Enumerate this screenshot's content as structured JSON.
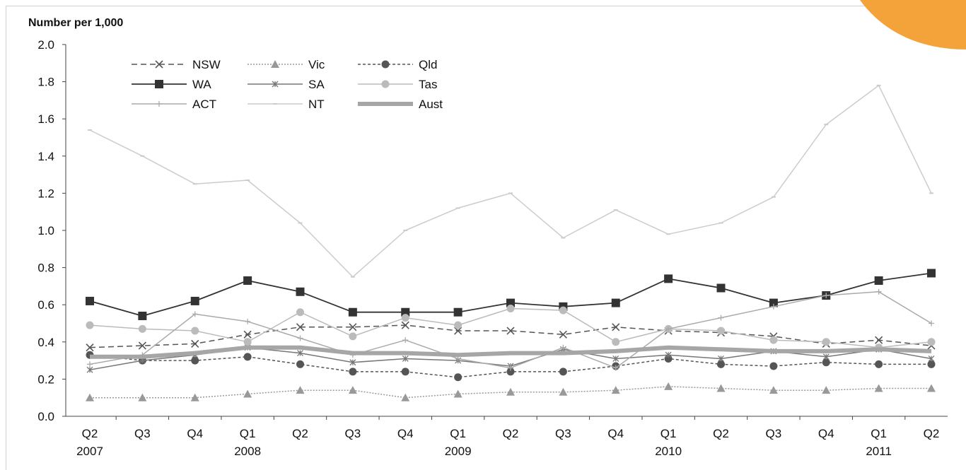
{
  "chart_data": {
    "type": "line",
    "ylabel": "Number per 1,000",
    "xlabel": "",
    "ylim": [
      0,
      2.0
    ],
    "y_ticks": [
      "0.0",
      "0.2",
      "0.4",
      "0.6",
      "0.8",
      "1.0",
      "1.2",
      "1.4",
      "1.6",
      "1.8",
      "2.0"
    ],
    "x_quarters": [
      "Q2",
      "Q3",
      "Q4",
      "Q1",
      "Q2",
      "Q3",
      "Q4",
      "Q1",
      "Q2",
      "Q3",
      "Q4",
      "Q1",
      "Q2",
      "Q3",
      "Q4",
      "Q1",
      "Q2"
    ],
    "x_years": [
      {
        "label": "2007",
        "index": 0
      },
      {
        "label": "2008",
        "index": 3
      },
      {
        "label": "2009",
        "index": 7
      },
      {
        "label": "2010",
        "index": 11
      },
      {
        "label": "2011",
        "index": 15
      }
    ],
    "grid": false,
    "legend_position": "top-left",
    "series": [
      {
        "name": "NSW",
        "color": "#555555",
        "dash": "8,5",
        "width": 1.5,
        "marker": "x",
        "values": [
          0.37,
          0.38,
          0.39,
          0.44,
          0.48,
          0.48,
          0.49,
          0.46,
          0.46,
          0.44,
          0.48,
          0.46,
          0.45,
          0.43,
          0.39,
          0.41,
          0.38
        ]
      },
      {
        "name": "Vic",
        "color": "#999999",
        "dash": "2,2",
        "width": 1.5,
        "marker": "triangle",
        "values": [
          0.1,
          0.1,
          0.1,
          0.12,
          0.14,
          0.14,
          0.1,
          0.12,
          0.13,
          0.13,
          0.14,
          0.16,
          0.15,
          0.14,
          0.14,
          0.15,
          0.15
        ]
      },
      {
        "name": "Qld",
        "color": "#555555",
        "dash": "4,3",
        "width": 1.5,
        "marker": "circle",
        "values": [
          0.33,
          0.3,
          0.3,
          0.32,
          0.28,
          0.24,
          0.24,
          0.21,
          0.24,
          0.24,
          0.27,
          0.31,
          0.28,
          0.27,
          0.29,
          0.28,
          0.28
        ]
      },
      {
        "name": "WA",
        "color": "#333333",
        "dash": "",
        "width": 1.8,
        "marker": "square",
        "values": [
          0.62,
          0.54,
          0.62,
          0.73,
          0.67,
          0.56,
          0.56,
          0.56,
          0.61,
          0.59,
          0.61,
          0.74,
          0.69,
          0.61,
          0.65,
          0.73,
          0.77
        ]
      },
      {
        "name": "SA",
        "color": "#777777",
        "dash": "",
        "width": 1.5,
        "marker": "star",
        "values": [
          0.25,
          0.3,
          0.33,
          0.37,
          0.34,
          0.29,
          0.31,
          0.3,
          0.27,
          0.36,
          0.31,
          0.33,
          0.31,
          0.35,
          0.32,
          0.36,
          0.31
        ]
      },
      {
        "name": "Tas",
        "color": "#bbbbbb",
        "dash": "",
        "width": 1.5,
        "marker": "circle",
        "values": [
          0.49,
          0.47,
          0.46,
          0.4,
          0.56,
          0.43,
          0.53,
          0.49,
          0.58,
          0.57,
          0.4,
          0.47,
          0.46,
          0.41,
          0.4,
          0.37,
          0.4
        ]
      },
      {
        "name": "ACT",
        "color": "#aaaaaa",
        "dash": "",
        "width": 1.5,
        "marker": "plus",
        "values": [
          0.28,
          0.33,
          0.55,
          0.51,
          0.42,
          0.33,
          0.41,
          0.31,
          0.26,
          0.37,
          0.26,
          0.47,
          0.53,
          0.59,
          0.65,
          0.67,
          0.5
        ]
      },
      {
        "name": "NT",
        "color": "#cccccc",
        "dash": "",
        "width": 1.5,
        "marker": "dash",
        "values": [
          1.54,
          1.4,
          1.25,
          1.27,
          1.04,
          0.75,
          1.0,
          1.12,
          1.2,
          0.96,
          1.11,
          0.98,
          1.04,
          1.18,
          1.57,
          1.78,
          1.2
        ]
      },
      {
        "name": "Aust",
        "color": "#a6a6a6",
        "dash": "",
        "width": 6,
        "marker": "none",
        "values": [
          0.32,
          0.32,
          0.34,
          0.37,
          0.37,
          0.34,
          0.34,
          0.33,
          0.34,
          0.34,
          0.35,
          0.37,
          0.36,
          0.35,
          0.35,
          0.36,
          0.35
        ]
      }
    ]
  },
  "decoration": {
    "accent_color": "#f4a33a"
  }
}
